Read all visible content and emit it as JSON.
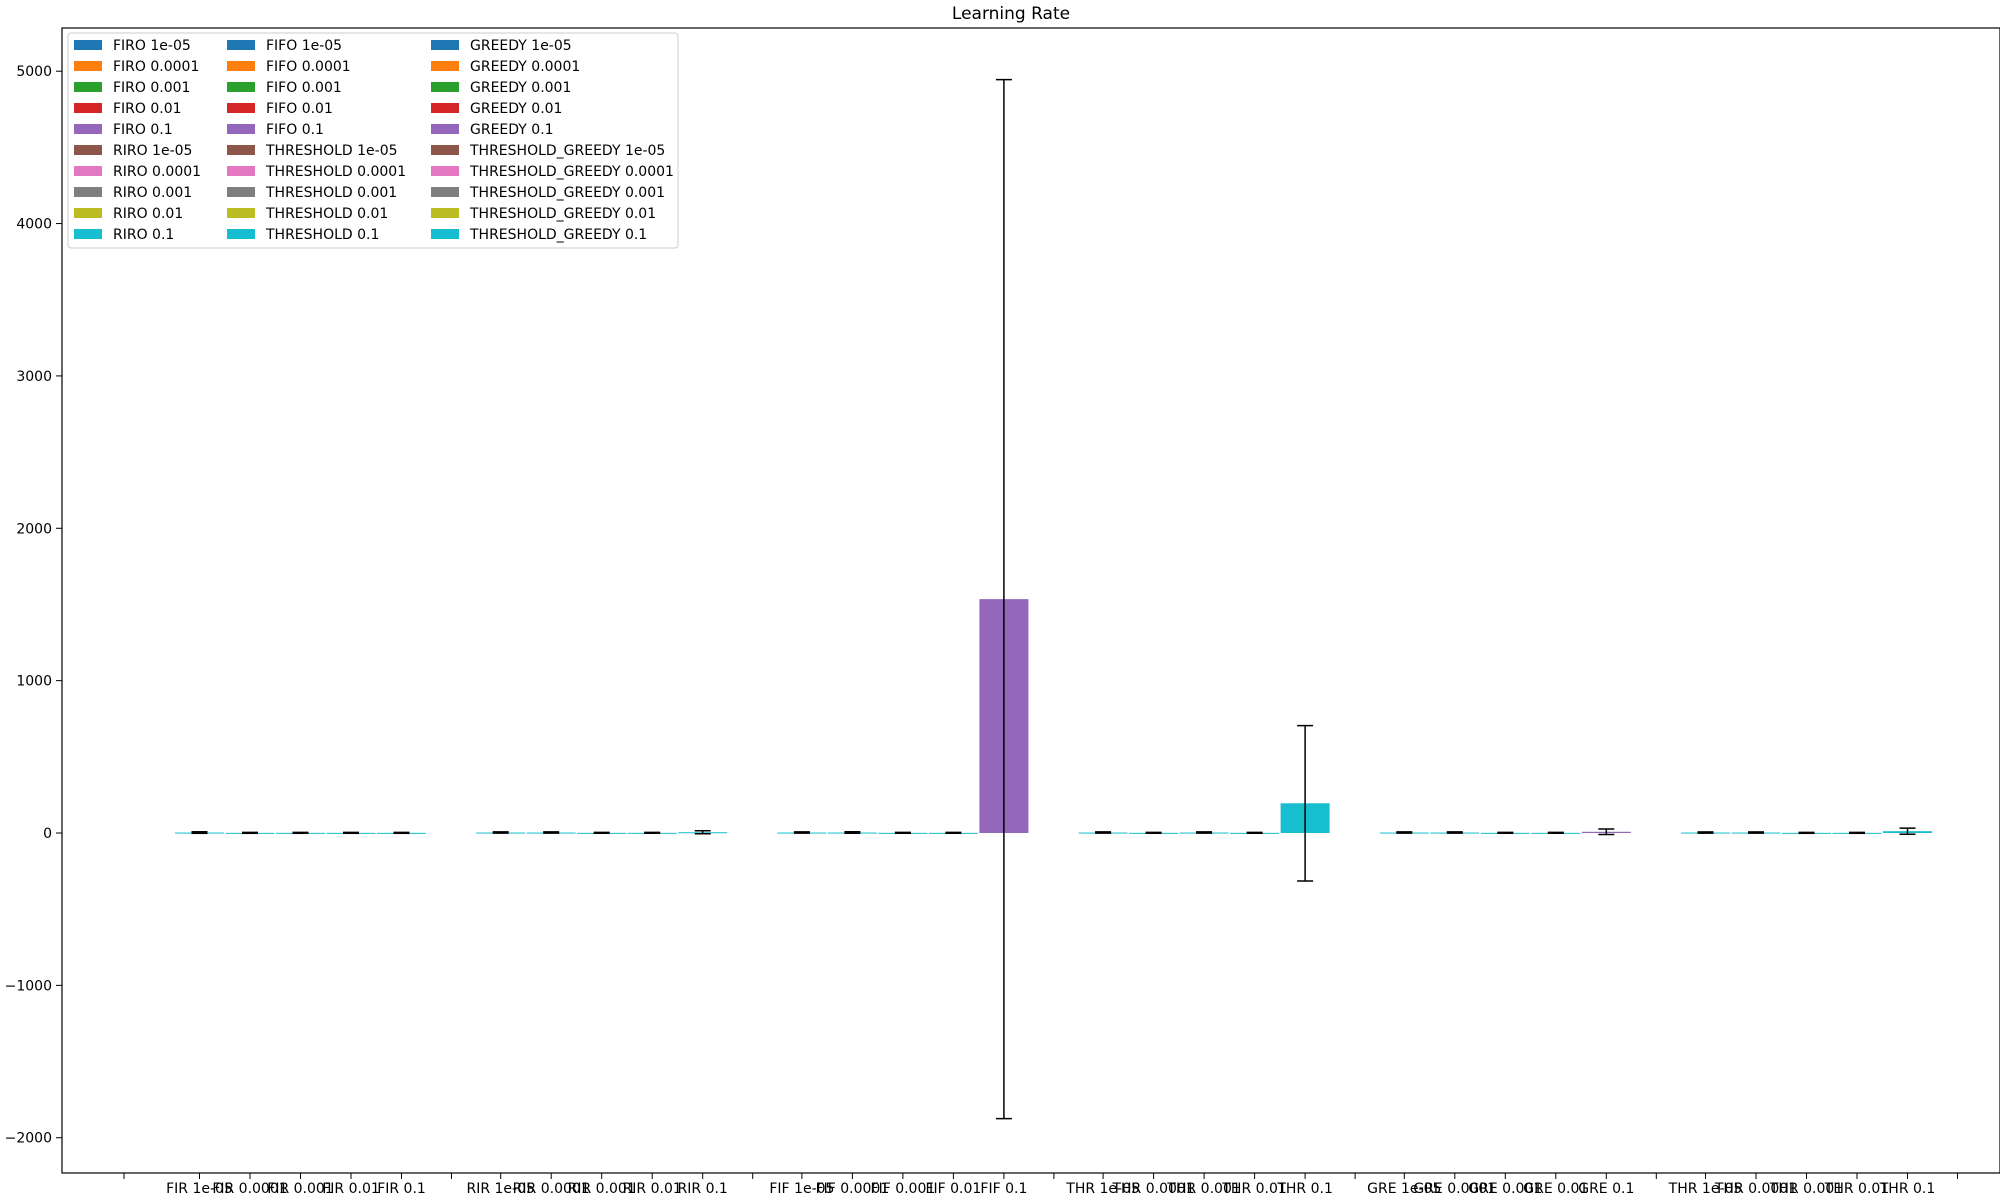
{
  "chart_data": {
    "type": "bar",
    "title": "Learning Rate",
    "xlabel": "",
    "ylabel": "",
    "ylim": [
      -2200,
      5300
    ],
    "yticks": [
      -2000,
      -1000,
      0,
      1000,
      2000,
      3000,
      4000,
      5000
    ],
    "ytick_labels": [
      "−2000",
      "−1000",
      "0",
      "1000",
      "2000",
      "3000",
      "4000",
      "5000"
    ],
    "legend": {
      "placement": "upper left",
      "columns": 3
    },
    "grid": false,
    "colors": [
      "#1f77b4",
      "#ff7f0e",
      "#2ca02c",
      "#d62728",
      "#9467bd",
      "#8c564b",
      "#e377c2",
      "#7f7f7f",
      "#bcbd22",
      "#17becf"
    ],
    "error_color": "#000000",
    "groups": [
      {
        "name": "FIRO",
        "tick_labels": [
          "FIR 1e-05",
          "FIR 0.0001",
          "FIR 0.001",
          "FIR 0.01",
          "FIR 0.1"
        ],
        "series": [
          {
            "name": "FIRO 1e-05",
            "value": 3,
            "error": 5,
            "color_index": 9
          },
          {
            "name": "FIRO 0.0001",
            "value": 1,
            "error": 3,
            "color_index": 9
          },
          {
            "name": "FIRO 0.001",
            "value": 1,
            "error": 3,
            "color_index": 9
          },
          {
            "name": "FIRO 0.01",
            "value": 1,
            "error": 3,
            "color_index": 9
          },
          {
            "name": "FIRO 0.1",
            "value": 1,
            "error": 3,
            "color_index": 9
          }
        ]
      },
      {
        "name": "RIRO",
        "tick_labels": [
          "RIR 1e-05",
          "RIR 0.0001",
          "RIR 0.001",
          "RIR 0.01",
          "RIR 0.1"
        ],
        "series": [
          {
            "name": "RIRO 1e-05",
            "value": 3,
            "error": 4,
            "color_index": 9
          },
          {
            "name": "RIRO 0.0001",
            "value": 3,
            "error": 4,
            "color_index": 9
          },
          {
            "name": "RIRO 0.001",
            "value": 1,
            "error": 3,
            "color_index": 9
          },
          {
            "name": "RIRO 0.01",
            "value": 1,
            "error": 3,
            "color_index": 9
          },
          {
            "name": "RIRO 0.1",
            "value": 5,
            "error": 10,
            "color_index": 9
          }
        ]
      },
      {
        "name": "FIFO",
        "tick_labels": [
          "FIF 1e-05",
          "FIF 0.0001",
          "FIF 0.001",
          "FIF 0.01",
          "FIF 0.1"
        ],
        "series": [
          {
            "name": "FIFO 1e-05",
            "value": 3,
            "error": 4,
            "color_index": 9
          },
          {
            "name": "FIFO 0.0001",
            "value": 3,
            "error": 5,
            "color_index": 9
          },
          {
            "name": "FIFO 0.001",
            "value": 1,
            "error": 3,
            "color_index": 9
          },
          {
            "name": "FIFO 0.01",
            "value": 1,
            "error": 3,
            "color_index": 9
          },
          {
            "name": "FIFO 0.1",
            "value": 1535,
            "error": 3410,
            "color_index": 4
          }
        ]
      },
      {
        "name": "THRESHOLD",
        "tick_labels": [
          "THR 1e-05",
          "THR 0.0001",
          "THR 0.001",
          "THR 0.01",
          "THR 0.1"
        ],
        "series": [
          {
            "name": "THRESHOLD 1e-05",
            "value": 3,
            "error": 4,
            "color_index": 9
          },
          {
            "name": "THRESHOLD 0.0001",
            "value": 1,
            "error": 3,
            "color_index": 9
          },
          {
            "name": "THRESHOLD 0.001",
            "value": 3,
            "error": 4,
            "color_index": 9
          },
          {
            "name": "THRESHOLD 0.01",
            "value": 1,
            "error": 3,
            "color_index": 9
          },
          {
            "name": "THRESHOLD 0.1",
            "value": 195,
            "error": 510,
            "color_index": 9
          }
        ]
      },
      {
        "name": "GREEDY",
        "tick_labels": [
          "GRE 1e-05",
          "GRE 0.0001",
          "GRE 0.001",
          "GRE 0.01",
          "GRE 0.1"
        ],
        "series": [
          {
            "name": "GREEDY 1e-05",
            "value": 3,
            "error": 4,
            "color_index": 9
          },
          {
            "name": "GREEDY 0.0001",
            "value": 3,
            "error": 4,
            "color_index": 9
          },
          {
            "name": "GREEDY 0.001",
            "value": 1,
            "error": 3,
            "color_index": 9
          },
          {
            "name": "GREEDY 0.01",
            "value": 1,
            "error": 3,
            "color_index": 9
          },
          {
            "name": "GREEDY 0.1",
            "value": 8,
            "error": 18,
            "color_index": 4
          }
        ]
      },
      {
        "name": "THRESHOLD_GREEDY",
        "tick_labels": [
          "THR 1e-05",
          "THR 0.0001",
          "THR 0.001",
          "THR 0.01",
          "THR 0.1"
        ],
        "series": [
          {
            "name": "THRESHOLD_GREEDY 1e-05",
            "value": 3,
            "error": 4,
            "color_index": 9
          },
          {
            "name": "THRESHOLD_GREEDY 0.0001",
            "value": 3,
            "error": 4,
            "color_index": 9
          },
          {
            "name": "THRESHOLD_GREEDY 0.001",
            "value": 1,
            "error": 3,
            "color_index": 9
          },
          {
            "name": "THRESHOLD_GREEDY 0.01",
            "value": 1,
            "error": 3,
            "color_index": 9
          },
          {
            "name": "THRESHOLD_GREEDY 0.1",
            "value": 12,
            "error": 20,
            "color_index": 9
          }
        ]
      }
    ],
    "legend_entries": [
      [
        "FIRO 1e-05",
        "FIRO 0.0001",
        "FIRO 0.001",
        "FIRO 0.01",
        "FIRO 0.1",
        "RIRO 1e-05",
        "RIRO 0.0001",
        "RIRO 0.001",
        "RIRO 0.01",
        "RIRO 0.1"
      ],
      [
        "FIFO 1e-05",
        "FIFO 0.0001",
        "FIFO 0.001",
        "FIFO 0.01",
        "FIFO 0.1",
        "THRESHOLD 1e-05",
        "THRESHOLD 0.0001",
        "THRESHOLD 0.001",
        "THRESHOLD 0.01",
        "THRESHOLD 0.1"
      ],
      [
        "GREEDY 1e-05",
        "GREEDY 0.0001",
        "GREEDY 0.001",
        "GREEDY 0.01",
        "GREEDY 0.1",
        "THRESHOLD_GREEDY 1e-05",
        "THRESHOLD_GREEDY 0.0001",
        "THRESHOLD_GREEDY 0.001",
        "THRESHOLD_GREEDY 0.01",
        "THRESHOLD_GREEDY 0.1"
      ]
    ]
  }
}
